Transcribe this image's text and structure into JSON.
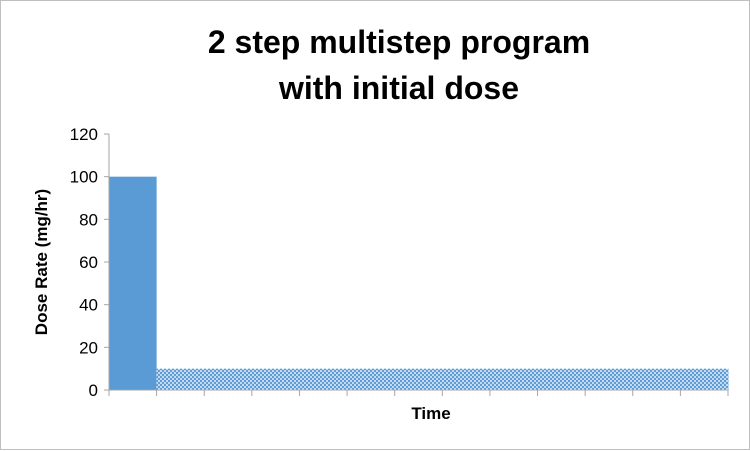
{
  "chart_data": {
    "type": "bar",
    "title_lines": [
      "2 step multistep program",
      "with initial dose"
    ],
    "xlabel": "Time",
    "ylabel": "Dose Rate (mg/hr)",
    "ylim": [
      0,
      120
    ],
    "yticks": [
      0,
      20,
      40,
      60,
      80,
      100,
      120
    ],
    "grid": false,
    "legend": "none",
    "x_intervals": 13,
    "series": [
      {
        "values": [
          100,
          10,
          10,
          10,
          10,
          10,
          10,
          10,
          10,
          10,
          10,
          10,
          10
        ]
      }
    ],
    "colors": {
      "initial_bar": "#5b9bd5",
      "pattern_fg": "#5b9bd5",
      "pattern_bg": "#ffffff",
      "axis": "#a6a6a6"
    }
  }
}
